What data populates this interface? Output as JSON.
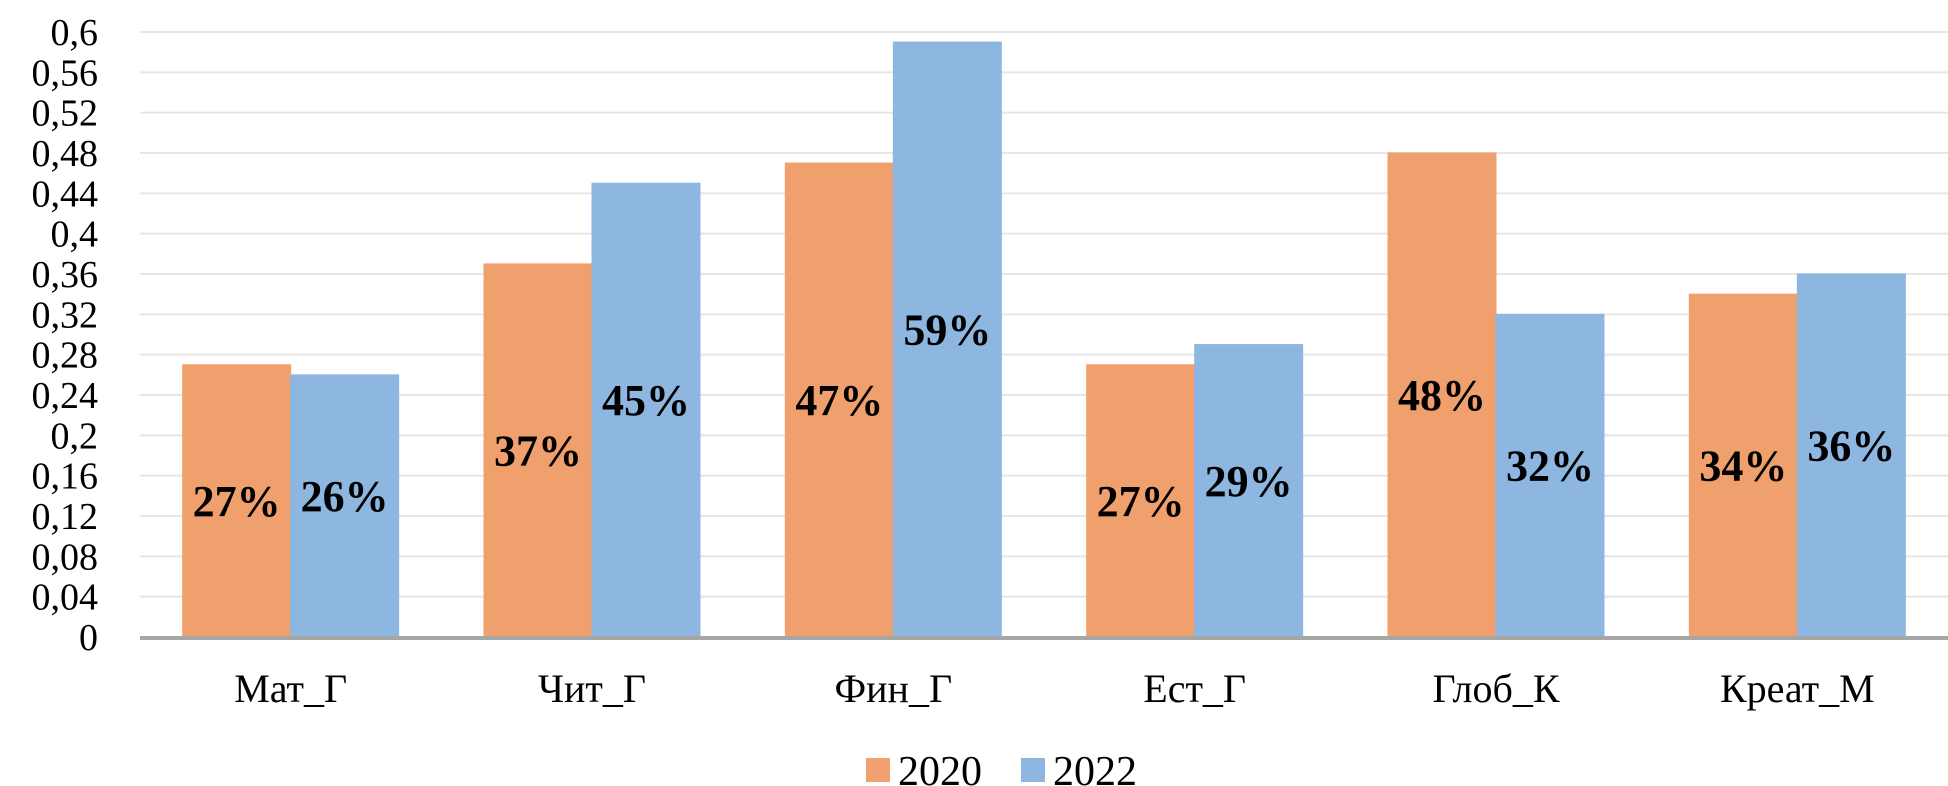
{
  "chart_data": {
    "type": "bar",
    "title": "",
    "xlabel": "",
    "ylabel": "",
    "categories": [
      "Мат_Г",
      "Чит_Г",
      "Фин_Г",
      "Ест_Г",
      "Глоб_К",
      "Креат_М"
    ],
    "series": [
      {
        "name": "2020",
        "values": [
          0.27,
          0.37,
          0.47,
          0.27,
          0.48,
          0.34
        ],
        "labels": [
          "27%",
          "37%",
          "47%",
          "27%",
          "48%",
          "34%"
        ]
      },
      {
        "name": "2022",
        "values": [
          0.26,
          0.45,
          0.59,
          0.29,
          0.32,
          0.36
        ],
        "labels": [
          "26%",
          "45%",
          "59%",
          "29%",
          "32%",
          "36%"
        ]
      }
    ],
    "ylim": [
      0,
      0.6
    ],
    "yticks": [
      "0",
      "0,04",
      "0,08",
      "0,12",
      "0,16",
      "0,2",
      "0,24",
      "0,28",
      "0,32",
      "0,36",
      "0,4",
      "0,44",
      "0,48",
      "0,52",
      "0,56",
      "0,6"
    ],
    "grid": true,
    "legend": "bottom"
  },
  "colors": {
    "2020": "#F0A06C",
    "2022": "#8DB7E0",
    "grid": "#E6E6E6",
    "axis": "#A6A6A6"
  }
}
